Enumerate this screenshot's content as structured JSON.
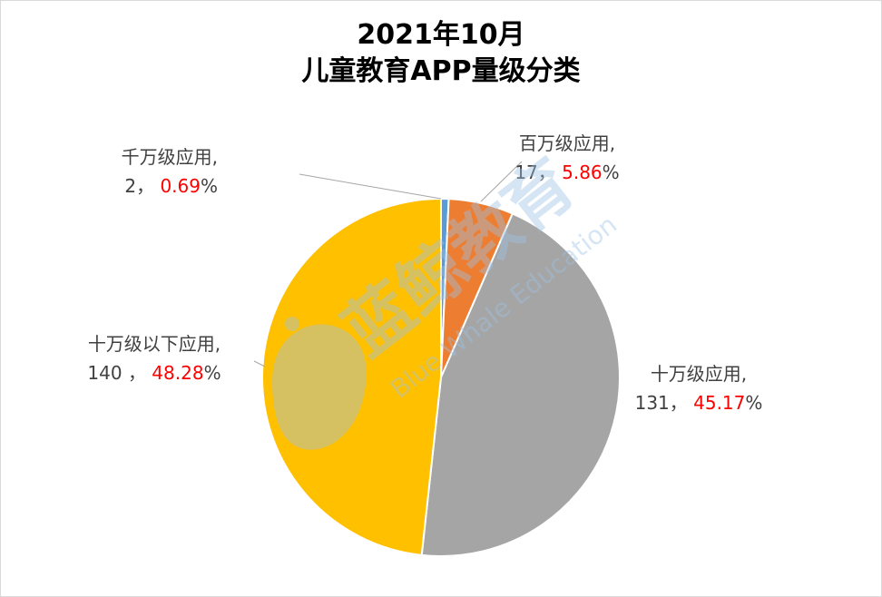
{
  "chart_data": {
    "type": "pie",
    "title": "2021年10月儿童教育APP量级分类",
    "title_lines": [
      "2021年10月",
      "儿童教育APP量级分类"
    ],
    "series": [
      {
        "name": "",
        "slices": [
          {
            "label": "千万级应用,",
            "value": 2,
            "percent": "0.69%",
            "value_text": "2，",
            "color": "#5b9bd5"
          },
          {
            "label": "百万级应用,",
            "value": 17,
            "percent": "5.86%",
            "value_text": "17，",
            "color": "#ed7d31"
          },
          {
            "label": "十万级应用,",
            "value": 131,
            "percent": "45.17%",
            "value_text": "131，",
            "color": "#a5a5a5"
          },
          {
            "label": "十万级以下应用,",
            "value": 140,
            "percent": "48.28%",
            "value_text": "140 ，",
            "color": "#ffc000"
          }
        ]
      }
    ],
    "legend": "none",
    "label_text_color": "#404040",
    "percent_text_color": "#ff0000"
  },
  "watermark": {
    "text_cn": "蓝鲸教育",
    "text_en": "Blue Whale Education",
    "color": "#9dc3e6"
  }
}
